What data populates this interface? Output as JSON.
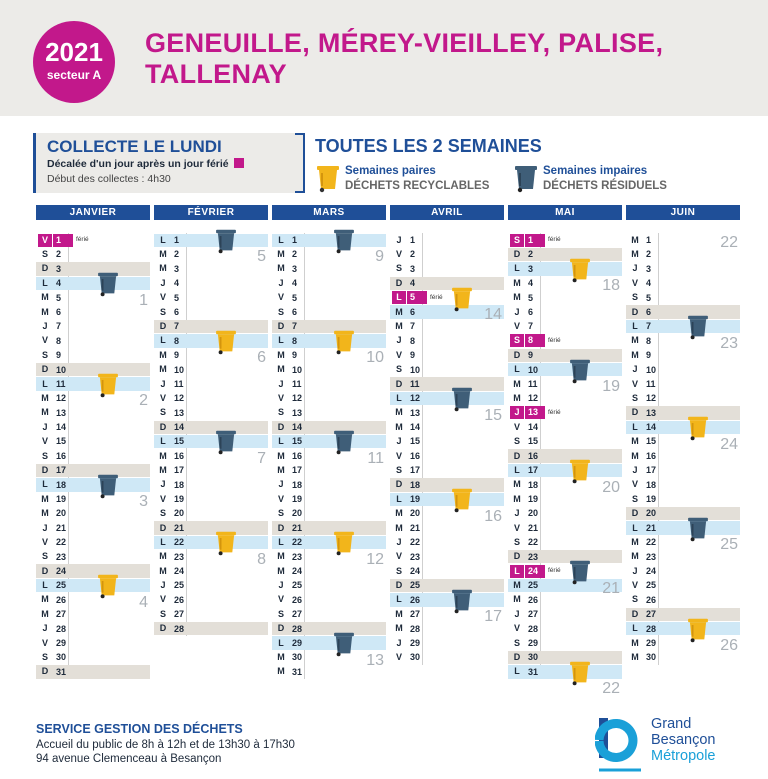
{
  "header": {
    "year": "2021",
    "sector": "secteur A",
    "title": "GENEUILLE, MÉREY-VIEILLEY, PALISE, TALLENAY"
  },
  "collect": {
    "title": "COLLECTE LE LUNDI",
    "subtitle": "Décalée d'un jour après un jour férié",
    "start": "Début des collectes : 4h30"
  },
  "frequency": {
    "title": "TOUTES LES 2 SEMAINES",
    "even_line1": "Semaines paires",
    "even_line2": "DÉCHETS RECYCLABLES",
    "odd_line1": "Semaines impaires",
    "odd_line2": "DÉCHETS RÉSIDUELS"
  },
  "holiday_label": "férié",
  "colors": {
    "magenta": "#c2188b",
    "navy": "#1f4f98",
    "recyclable_bin": "#f2b51b",
    "residual_bin": "#3f5e78",
    "collect_band": "#cfe8f6",
    "weekend_band": "#e3dfd8"
  },
  "months": [
    {
      "name": "JANVIER",
      "days": [
        {
          "wd": "V",
          "d": "1",
          "hol": true
        },
        {
          "wd": "S",
          "d": "2"
        },
        {
          "wd": "D",
          "d": "3",
          "grey": true
        },
        {
          "wd": "L",
          "d": "4",
          "blue": true,
          "bin": "residual"
        },
        {
          "wd": "M",
          "d": "5"
        },
        {
          "wd": "M",
          "d": "6"
        },
        {
          "wd": "J",
          "d": "7"
        },
        {
          "wd": "V",
          "d": "8"
        },
        {
          "wd": "S",
          "d": "9"
        },
        {
          "wd": "D",
          "d": "10",
          "grey": true
        },
        {
          "wd": "L",
          "d": "11",
          "blue": true,
          "bin": "recyclable"
        },
        {
          "wd": "M",
          "d": "12"
        },
        {
          "wd": "M",
          "d": "13"
        },
        {
          "wd": "J",
          "d": "14"
        },
        {
          "wd": "V",
          "d": "15"
        },
        {
          "wd": "S",
          "d": "16"
        },
        {
          "wd": "D",
          "d": "17",
          "grey": true
        },
        {
          "wd": "L",
          "d": "18",
          "blue": true,
          "bin": "residual"
        },
        {
          "wd": "M",
          "d": "19"
        },
        {
          "wd": "M",
          "d": "20"
        },
        {
          "wd": "J",
          "d": "21"
        },
        {
          "wd": "V",
          "d": "22"
        },
        {
          "wd": "S",
          "d": "23"
        },
        {
          "wd": "D",
          "d": "24",
          "grey": true
        },
        {
          "wd": "L",
          "d": "25",
          "blue": true,
          "bin": "recyclable"
        },
        {
          "wd": "M",
          "d": "26"
        },
        {
          "wd": "M",
          "d": "27"
        },
        {
          "wd": "J",
          "d": "28"
        },
        {
          "wd": "V",
          "d": "29"
        },
        {
          "wd": "S",
          "d": "30"
        },
        {
          "wd": "D",
          "d": "31",
          "grey": true
        }
      ],
      "weeks": [
        {
          "n": "1",
          "row": 4
        },
        {
          "n": "2",
          "row": 11
        },
        {
          "n": "3",
          "row": 18
        },
        {
          "n": "4",
          "row": 25
        }
      ]
    },
    {
      "name": "FÉVRIER",
      "days": [
        {
          "wd": "L",
          "d": "1",
          "blue": true,
          "bin": "residual"
        },
        {
          "wd": "M",
          "d": "2"
        },
        {
          "wd": "M",
          "d": "3"
        },
        {
          "wd": "J",
          "d": "4"
        },
        {
          "wd": "V",
          "d": "5"
        },
        {
          "wd": "S",
          "d": "6"
        },
        {
          "wd": "D",
          "d": "7",
          "grey": true
        },
        {
          "wd": "L",
          "d": "8",
          "blue": true,
          "bin": "recyclable"
        },
        {
          "wd": "M",
          "d": "9"
        },
        {
          "wd": "M",
          "d": "10"
        },
        {
          "wd": "J",
          "d": "11"
        },
        {
          "wd": "V",
          "d": "12"
        },
        {
          "wd": "S",
          "d": "13"
        },
        {
          "wd": "D",
          "d": "14",
          "grey": true
        },
        {
          "wd": "L",
          "d": "15",
          "blue": true,
          "bin": "residual"
        },
        {
          "wd": "M",
          "d": "16"
        },
        {
          "wd": "M",
          "d": "17"
        },
        {
          "wd": "J",
          "d": "18"
        },
        {
          "wd": "V",
          "d": "19"
        },
        {
          "wd": "S",
          "d": "20"
        },
        {
          "wd": "D",
          "d": "21",
          "grey": true
        },
        {
          "wd": "L",
          "d": "22",
          "blue": true,
          "bin": "recyclable"
        },
        {
          "wd": "M",
          "d": "23"
        },
        {
          "wd": "M",
          "d": "24"
        },
        {
          "wd": "J",
          "d": "25"
        },
        {
          "wd": "V",
          "d": "26"
        },
        {
          "wd": "S",
          "d": "27"
        },
        {
          "wd": "D",
          "d": "28",
          "grey": true
        }
      ],
      "weeks": [
        {
          "n": "5",
          "row": 1
        },
        {
          "n": "6",
          "row": 8
        },
        {
          "n": "7",
          "row": 15
        },
        {
          "n": "8",
          "row": 22
        }
      ]
    },
    {
      "name": "MARS",
      "days": [
        {
          "wd": "L",
          "d": "1",
          "blue": true,
          "bin": "residual"
        },
        {
          "wd": "M",
          "d": "2"
        },
        {
          "wd": "M",
          "d": "3"
        },
        {
          "wd": "J",
          "d": "4"
        },
        {
          "wd": "V",
          "d": "5"
        },
        {
          "wd": "S",
          "d": "6"
        },
        {
          "wd": "D",
          "d": "7",
          "grey": true
        },
        {
          "wd": "L",
          "d": "8",
          "blue": true,
          "bin": "recyclable"
        },
        {
          "wd": "M",
          "d": "9"
        },
        {
          "wd": "M",
          "d": "10"
        },
        {
          "wd": "J",
          "d": "11"
        },
        {
          "wd": "V",
          "d": "12"
        },
        {
          "wd": "S",
          "d": "13"
        },
        {
          "wd": "D",
          "d": "14",
          "grey": true
        },
        {
          "wd": "L",
          "d": "15",
          "blue": true,
          "bin": "residual"
        },
        {
          "wd": "M",
          "d": "16"
        },
        {
          "wd": "M",
          "d": "17"
        },
        {
          "wd": "J",
          "d": "18"
        },
        {
          "wd": "V",
          "d": "19"
        },
        {
          "wd": "S",
          "d": "20"
        },
        {
          "wd": "D",
          "d": "21",
          "grey": true
        },
        {
          "wd": "L",
          "d": "22",
          "blue": true,
          "bin": "recyclable"
        },
        {
          "wd": "M",
          "d": "23"
        },
        {
          "wd": "M",
          "d": "24"
        },
        {
          "wd": "J",
          "d": "25"
        },
        {
          "wd": "V",
          "d": "26"
        },
        {
          "wd": "S",
          "d": "27"
        },
        {
          "wd": "D",
          "d": "28",
          "grey": true
        },
        {
          "wd": "L",
          "d": "29",
          "blue": true,
          "bin": "residual"
        },
        {
          "wd": "M",
          "d": "30"
        },
        {
          "wd": "M",
          "d": "31"
        }
      ],
      "weeks": [
        {
          "n": "9",
          "row": 1
        },
        {
          "n": "10",
          "row": 8
        },
        {
          "n": "11",
          "row": 15
        },
        {
          "n": "12",
          "row": 22
        },
        {
          "n": "13",
          "row": 29
        }
      ]
    },
    {
      "name": "AVRIL",
      "days": [
        {
          "wd": "J",
          "d": "1"
        },
        {
          "wd": "V",
          "d": "2"
        },
        {
          "wd": "S",
          "d": "3"
        },
        {
          "wd": "D",
          "d": "4",
          "grey": true
        },
        {
          "wd": "L",
          "d": "5",
          "hol": true,
          "bin": "recyclable"
        },
        {
          "wd": "M",
          "d": "6",
          "blue": true
        },
        {
          "wd": "M",
          "d": "7"
        },
        {
          "wd": "J",
          "d": "8"
        },
        {
          "wd": "V",
          "d": "9"
        },
        {
          "wd": "S",
          "d": "10"
        },
        {
          "wd": "D",
          "d": "11",
          "grey": true
        },
        {
          "wd": "L",
          "d": "12",
          "blue": true,
          "bin": "residual"
        },
        {
          "wd": "M",
          "d": "13"
        },
        {
          "wd": "M",
          "d": "14"
        },
        {
          "wd": "J",
          "d": "15"
        },
        {
          "wd": "V",
          "d": "16"
        },
        {
          "wd": "S",
          "d": "17"
        },
        {
          "wd": "D",
          "d": "18",
          "grey": true
        },
        {
          "wd": "L",
          "d": "19",
          "blue": true,
          "bin": "recyclable"
        },
        {
          "wd": "M",
          "d": "20"
        },
        {
          "wd": "M",
          "d": "21"
        },
        {
          "wd": "J",
          "d": "22"
        },
        {
          "wd": "V",
          "d": "23"
        },
        {
          "wd": "S",
          "d": "24"
        },
        {
          "wd": "D",
          "d": "25",
          "grey": true
        },
        {
          "wd": "L",
          "d": "26",
          "blue": true,
          "bin": "residual"
        },
        {
          "wd": "M",
          "d": "27"
        },
        {
          "wd": "M",
          "d": "28"
        },
        {
          "wd": "J",
          "d": "29"
        },
        {
          "wd": "V",
          "d": "30"
        }
      ],
      "weeks": [
        {
          "n": "14",
          "row": 5
        },
        {
          "n": "15",
          "row": 12
        },
        {
          "n": "16",
          "row": 19
        },
        {
          "n": "17",
          "row": 26
        }
      ]
    },
    {
      "name": "MAI",
      "days": [
        {
          "wd": "S",
          "d": "1",
          "hol": true
        },
        {
          "wd": "D",
          "d": "2",
          "grey": true
        },
        {
          "wd": "L",
          "d": "3",
          "blue": true,
          "bin": "recyclable"
        },
        {
          "wd": "M",
          "d": "4"
        },
        {
          "wd": "M",
          "d": "5"
        },
        {
          "wd": "J",
          "d": "6"
        },
        {
          "wd": "V",
          "d": "7"
        },
        {
          "wd": "S",
          "d": "8",
          "hol": true
        },
        {
          "wd": "D",
          "d": "9",
          "grey": true
        },
        {
          "wd": "L",
          "d": "10",
          "blue": true,
          "bin": "residual"
        },
        {
          "wd": "M",
          "d": "11"
        },
        {
          "wd": "M",
          "d": "12"
        },
        {
          "wd": "J",
          "d": "13",
          "hol": true
        },
        {
          "wd": "V",
          "d": "14"
        },
        {
          "wd": "S",
          "d": "15"
        },
        {
          "wd": "D",
          "d": "16",
          "grey": true
        },
        {
          "wd": "L",
          "d": "17",
          "blue": true,
          "bin": "recyclable"
        },
        {
          "wd": "M",
          "d": "18"
        },
        {
          "wd": "M",
          "d": "19"
        },
        {
          "wd": "J",
          "d": "20"
        },
        {
          "wd": "V",
          "d": "21"
        },
        {
          "wd": "S",
          "d": "22"
        },
        {
          "wd": "D",
          "d": "23",
          "grey": true
        },
        {
          "wd": "L",
          "d": "24",
          "hol": true,
          "bin": "residual"
        },
        {
          "wd": "M",
          "d": "25",
          "blue": true
        },
        {
          "wd": "M",
          "d": "26"
        },
        {
          "wd": "J",
          "d": "27"
        },
        {
          "wd": "V",
          "d": "28"
        },
        {
          "wd": "S",
          "d": "29"
        },
        {
          "wd": "D",
          "d": "30",
          "grey": true
        },
        {
          "wd": "L",
          "d": "31",
          "blue": true,
          "bin": "recyclable"
        }
      ],
      "weeks": [
        {
          "n": "18",
          "row": 3
        },
        {
          "n": "19",
          "row": 10
        },
        {
          "n": "20",
          "row": 17
        },
        {
          "n": "21",
          "row": 24
        },
        {
          "n": "22",
          "row": 31
        }
      ]
    },
    {
      "name": "JUIN",
      "days": [
        {
          "wd": "M",
          "d": "1"
        },
        {
          "wd": "M",
          "d": "2"
        },
        {
          "wd": "J",
          "d": "3"
        },
        {
          "wd": "V",
          "d": "4"
        },
        {
          "wd": "S",
          "d": "5"
        },
        {
          "wd": "D",
          "d": "6",
          "grey": true
        },
        {
          "wd": "L",
          "d": "7",
          "blue": true,
          "bin": "residual"
        },
        {
          "wd": "M",
          "d": "8"
        },
        {
          "wd": "M",
          "d": "9"
        },
        {
          "wd": "J",
          "d": "10"
        },
        {
          "wd": "V",
          "d": "11"
        },
        {
          "wd": "S",
          "d": "12"
        },
        {
          "wd": "D",
          "d": "13",
          "grey": true
        },
        {
          "wd": "L",
          "d": "14",
          "blue": true,
          "bin": "recyclable"
        },
        {
          "wd": "M",
          "d": "15"
        },
        {
          "wd": "M",
          "d": "16"
        },
        {
          "wd": "J",
          "d": "17"
        },
        {
          "wd": "V",
          "d": "18"
        },
        {
          "wd": "S",
          "d": "19"
        },
        {
          "wd": "D",
          "d": "20",
          "grey": true
        },
        {
          "wd": "L",
          "d": "21",
          "blue": true,
          "bin": "residual"
        },
        {
          "wd": "M",
          "d": "22"
        },
        {
          "wd": "M",
          "d": "23"
        },
        {
          "wd": "J",
          "d": "24"
        },
        {
          "wd": "V",
          "d": "25"
        },
        {
          "wd": "S",
          "d": "26"
        },
        {
          "wd": "D",
          "d": "27",
          "grey": true
        },
        {
          "wd": "L",
          "d": "28",
          "blue": true,
          "bin": "recyclable"
        },
        {
          "wd": "M",
          "d": "29"
        },
        {
          "wd": "M",
          "d": "30"
        }
      ],
      "weeks": [
        {
          "n": "22",
          "row": 0
        },
        {
          "n": "23",
          "row": 7
        },
        {
          "n": "24",
          "row": 14
        },
        {
          "n": "25",
          "row": 21
        },
        {
          "n": "26",
          "row": 28
        }
      ]
    }
  ],
  "footer": {
    "service": "SERVICE GESTION DES DÉCHETS",
    "hours": "Accueil du public de 8h à 12h et de 13h30 à 17h30",
    "address": "94 avenue Clemenceau à Besançon"
  },
  "logo": {
    "line1": "Grand",
    "line2": "Besançon",
    "line3": "Métropole"
  }
}
